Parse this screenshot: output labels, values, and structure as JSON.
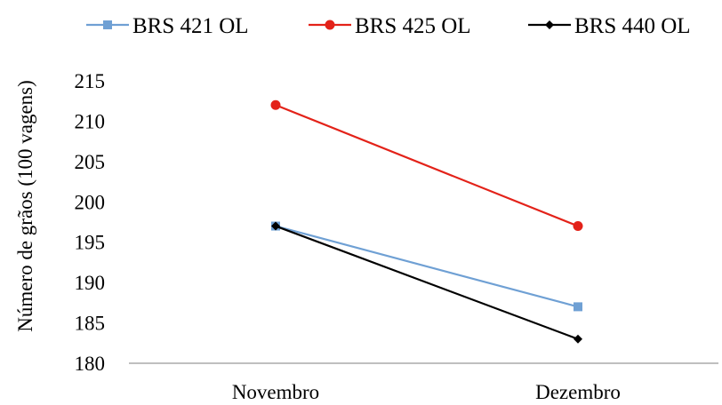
{
  "chart_data": {
    "type": "line",
    "categories": [
      "Novembro",
      "Dezembro"
    ],
    "series": [
      {
        "name": "BRS 421 OL",
        "values": [
          197,
          187
        ],
        "color": "#6fa0d4",
        "marker": "square"
      },
      {
        "name": "BRS 425 OL",
        "values": [
          212,
          197
        ],
        "color": "#e32219",
        "marker": "circle"
      },
      {
        "name": "BRS 440 OL",
        "values": [
          197,
          183
        ],
        "color": "#000000",
        "marker": "diamond"
      }
    ],
    "ylabel": "Número de grãos (100 vagens)",
    "xlabel": "",
    "ylim": [
      180,
      215
    ],
    "yticks": [
      180,
      185,
      190,
      195,
      200,
      205,
      210,
      215
    ],
    "grid": false,
    "legend": "top"
  }
}
